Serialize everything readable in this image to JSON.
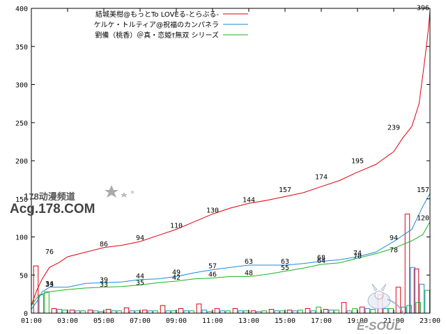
{
  "chart_data": {
    "type": "line",
    "x_ticks": [
      "01:00",
      "03:00",
      "05:00",
      "07:00",
      "09:00",
      "11:00",
      "13:00",
      "15:00",
      "17:00",
      "19:00",
      "21:00",
      "23:00"
    ],
    "y_ticks": [
      "0",
      "50",
      "100",
      "150",
      "200",
      "250",
      "300",
      "350",
      "400"
    ],
    "ylim": [
      0,
      400
    ],
    "xlim": [
      0,
      22
    ],
    "grid": false,
    "legend_position": "top-right",
    "series": [
      {
        "name": "結城美柑@もっとTo LOVEる-とらぶる-",
        "color": "#e0000f",
        "points": [
          [
            0,
            10
          ],
          [
            0.3,
            30
          ],
          [
            0.6,
            45
          ],
          [
            1,
            60
          ],
          [
            1.5,
            66
          ],
          [
            2,
            74
          ],
          [
            3,
            80
          ],
          [
            4,
            86
          ],
          [
            5,
            89
          ],
          [
            6,
            94
          ],
          [
            7,
            102
          ],
          [
            8,
            110
          ],
          [
            9,
            120
          ],
          [
            10,
            130
          ],
          [
            11,
            138
          ],
          [
            12,
            144
          ],
          [
            13,
            148
          ],
          [
            14,
            153
          ],
          [
            15,
            158
          ],
          [
            16,
            166
          ],
          [
            17,
            174
          ],
          [
            18,
            185
          ],
          [
            19,
            195
          ],
          [
            20,
            212
          ],
          [
            20.5,
            230
          ],
          [
            21,
            245
          ],
          [
            21.4,
            275
          ],
          [
            21.7,
            330
          ],
          [
            21.9,
            370
          ],
          [
            22,
            396
          ]
        ],
        "labels": [
          [
            1,
            76
          ],
          [
            4,
            86
          ],
          [
            6,
            94
          ],
          [
            8,
            110
          ],
          [
            10,
            130
          ],
          [
            12,
            144
          ],
          [
            14,
            157
          ],
          [
            16,
            174
          ],
          [
            18,
            195
          ],
          [
            20,
            239
          ],
          [
            22,
            396
          ]
        ],
        "bars": [
          [
            0.25,
            62
          ],
          [
            1.25,
            6
          ],
          [
            2.25,
            4
          ],
          [
            3.25,
            4
          ],
          [
            4.25,
            5
          ],
          [
            5.25,
            7
          ],
          [
            6.25,
            4
          ],
          [
            7.25,
            10
          ],
          [
            8.25,
            6
          ],
          [
            9.25,
            12
          ],
          [
            10.25,
            6
          ],
          [
            11.25,
            6
          ],
          [
            12.25,
            3
          ],
          [
            13.25,
            5
          ],
          [
            14.25,
            4
          ],
          [
            15.25,
            6
          ],
          [
            16.25,
            5
          ],
          [
            17.25,
            14
          ],
          [
            18.25,
            8
          ],
          [
            19.25,
            24
          ],
          [
            20.25,
            34
          ],
          [
            20.75,
            130
          ],
          [
            21.25,
            58
          ]
        ]
      },
      {
        "name": "ケルケ・トルティア@祝福のカンパネラ",
        "color": "#1c8ad8",
        "points": [
          [
            0,
            5
          ],
          [
            0.3,
            15
          ],
          [
            0.6,
            28
          ],
          [
            1,
            34
          ],
          [
            2,
            34
          ],
          [
            3,
            39
          ],
          [
            4,
            40
          ],
          [
            5,
            41
          ],
          [
            6,
            44
          ],
          [
            7,
            45
          ],
          [
            8,
            48
          ],
          [
            9,
            53
          ],
          [
            10,
            57
          ],
          [
            11,
            60
          ],
          [
            12,
            63
          ],
          [
            13,
            63
          ],
          [
            14,
            63
          ],
          [
            15,
            65
          ],
          [
            16,
            68
          ],
          [
            17,
            70
          ],
          [
            18,
            74
          ],
          [
            19,
            80
          ],
          [
            20,
            94
          ],
          [
            21,
            110
          ],
          [
            21.6,
            140
          ],
          [
            22,
            157
          ]
        ],
        "labels": [
          [
            1,
            34
          ],
          [
            4,
            39
          ],
          [
            6,
            44
          ],
          [
            8,
            49
          ],
          [
            10,
            57
          ],
          [
            12,
            63
          ],
          [
            14,
            63
          ],
          [
            16,
            68
          ],
          [
            18,
            74
          ],
          [
            20,
            94
          ],
          [
            22,
            157
          ]
        ],
        "bars": [
          [
            0.55,
            24
          ],
          [
            1.55,
            5
          ],
          [
            2.55,
            3
          ],
          [
            3.55,
            3
          ],
          [
            4.55,
            3
          ],
          [
            5.55,
            3
          ],
          [
            6.55,
            3
          ],
          [
            7.55,
            3
          ],
          [
            8.55,
            3
          ],
          [
            9.55,
            4
          ],
          [
            10.55,
            3
          ],
          [
            11.55,
            3
          ],
          [
            12.55,
            2
          ],
          [
            13.55,
            3
          ],
          [
            14.55,
            3
          ],
          [
            15.55,
            3
          ],
          [
            16.55,
            4
          ],
          [
            17.55,
            3
          ],
          [
            18.55,
            6
          ],
          [
            19.55,
            6
          ],
          [
            20.55,
            8
          ],
          [
            21.05,
            60
          ],
          [
            21.55,
            38
          ]
        ]
      },
      {
        "name": "劉備（桃香）＠真・恋姫†無双 シリーズ",
        "color": "#17b421",
        "points": [
          [
            0,
            10
          ],
          [
            0.3,
            20
          ],
          [
            0.6,
            25
          ],
          [
            1,
            28
          ],
          [
            2,
            31
          ],
          [
            3,
            33
          ],
          [
            4,
            34
          ],
          [
            5,
            35
          ],
          [
            6,
            37
          ],
          [
            7,
            40
          ],
          [
            8,
            42
          ],
          [
            9,
            45
          ],
          [
            10,
            46
          ],
          [
            11,
            48
          ],
          [
            12,
            48
          ],
          [
            13,
            51
          ],
          [
            14,
            55
          ],
          [
            15,
            59
          ],
          [
            16,
            64
          ],
          [
            17,
            66
          ],
          [
            18,
            72
          ],
          [
            19,
            78
          ],
          [
            20,
            85
          ],
          [
            21,
            95
          ],
          [
            21.6,
            103
          ],
          [
            22,
            120
          ]
        ],
        "labels": [
          [
            1,
            33
          ],
          [
            4,
            33
          ],
          [
            6,
            35
          ],
          [
            8,
            42
          ],
          [
            10,
            46
          ],
          [
            12,
            48
          ],
          [
            14,
            55
          ],
          [
            16,
            64
          ],
          [
            18,
            70
          ],
          [
            20,
            78
          ],
          [
            22,
            120
          ]
        ],
        "bars": [
          [
            0.85,
            28
          ],
          [
            1.85,
            4
          ],
          [
            2.85,
            3
          ],
          [
            3.85,
            2
          ],
          [
            4.85,
            3
          ],
          [
            5.85,
            3
          ],
          [
            6.85,
            3
          ],
          [
            7.85,
            3
          ],
          [
            8.85,
            3
          ],
          [
            9.85,
            2
          ],
          [
            10.85,
            3
          ],
          [
            11.85,
            3
          ],
          [
            12.85,
            3
          ],
          [
            13.85,
            3
          ],
          [
            14.85,
            4
          ],
          [
            15.85,
            8
          ],
          [
            16.85,
            4
          ],
          [
            17.85,
            6
          ],
          [
            18.85,
            5
          ],
          [
            19.85,
            6
          ],
          [
            20.85,
            10
          ],
          [
            21.35,
            14
          ],
          [
            21.85,
            30
          ]
        ]
      }
    ]
  },
  "watermark": {
    "line1": "178动漫频道",
    "line2": "Acg.178.COM",
    "corner": "E-SOUL"
  }
}
